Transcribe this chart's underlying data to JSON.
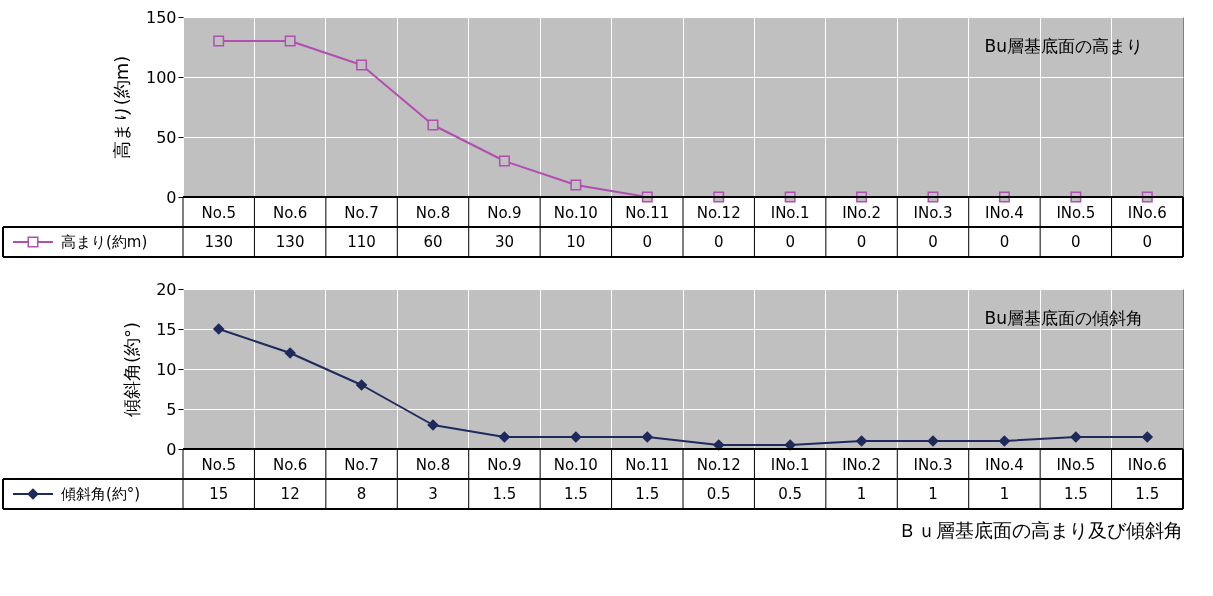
{
  "chart_data": [
    {
      "type": "line",
      "categories": [
        "No.5",
        "No.6",
        "No.7",
        "No.8",
        "No.9",
        "No.10",
        "No.11",
        "No.12",
        "INo.1",
        "INo.2",
        "INo.3",
        "INo.4",
        "INo.5",
        "INo.6"
      ],
      "series": [
        {
          "name": "高まり(約m)",
          "color": "#b04fb0",
          "values": [
            130,
            130,
            110,
            60,
            30,
            10,
            0,
            0,
            0,
            0,
            0,
            0,
            0,
            0
          ]
        }
      ],
      "ylabel": "高まり(約m)",
      "ylim": [
        0,
        150
      ],
      "yticks": [
        0,
        50,
        100,
        150
      ],
      "grid": true,
      "marker": "square",
      "legend": "bottom left",
      "data_labels": true,
      "annotations": [
        "Bu層基底面の高まり"
      ]
    },
    {
      "type": "line",
      "categories": [
        "No.5",
        "No.6",
        "No.7",
        "No.8",
        "No.9",
        "No.10",
        "No.11",
        "No.12",
        "INo.1",
        "INo.2",
        "INo.3",
        "INo.4",
        "INo.5",
        "INo.6"
      ],
      "series": [
        {
          "name": "傾斜角(約°)",
          "color": "#1f2a5c",
          "values": [
            15,
            12,
            8,
            3,
            1.5,
            1.5,
            1.5,
            0.5,
            0.5,
            1,
            1,
            1,
            1.5,
            1.5
          ]
        }
      ],
      "ylabel": "傾斜角(約°)",
      "ylim": [
        0,
        20
      ],
      "yticks": [
        0,
        5,
        10,
        15,
        20
      ],
      "grid": true,
      "marker": "diamond",
      "legend": "bottom left",
      "data_labels": true,
      "annotations": [
        "Bu層基底面の傾斜角",
        "Ｂｕ層基底面の高まり及び傾斜角"
      ]
    }
  ]
}
